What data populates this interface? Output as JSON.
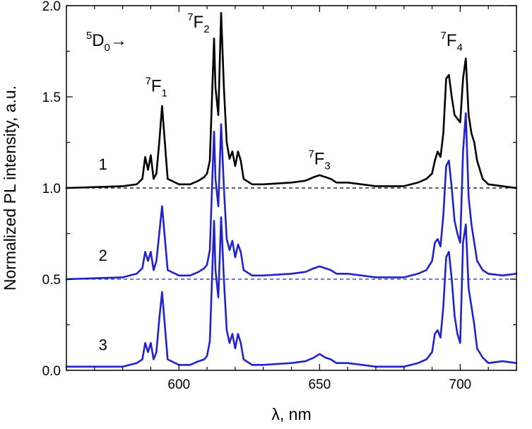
{
  "chart_data": {
    "type": "line",
    "title": "",
    "xlabel": "λ, nm",
    "ylabel": "Normalized PL intensity, a.u.",
    "xlim": [
      560,
      720
    ],
    "ylim": [
      0,
      2.0
    ],
    "x_ticks": [
      600,
      650,
      700
    ],
    "y_ticks": [
      0.0,
      0.5,
      1.0,
      1.5,
      2.0
    ],
    "x_tick_labels": [
      "600",
      "650",
      "700"
    ],
    "y_tick_labels": [
      "0.0",
      "0.5",
      "1.0",
      "1.5",
      "2.0"
    ],
    "grid": false,
    "baselines": [
      {
        "y": 1.0,
        "color": "#000000",
        "style": "dashed"
      },
      {
        "y": 0.5,
        "color": "#2222cc",
        "style": "dashed"
      }
    ],
    "series": [
      {
        "label": "1",
        "color": "#000000",
        "baseline": 1.0,
        "x": [
          560,
          580,
          585,
          587,
          588,
          589,
          590,
          591,
          592,
          593,
          594,
          596,
          600,
          604,
          607,
          609,
          610,
          611,
          612,
          612.5,
          613,
          614,
          615,
          616,
          617,
          618,
          619,
          620,
          621,
          622,
          623,
          626,
          630,
          640,
          645,
          648,
          650,
          652,
          654,
          656,
          660,
          670,
          680,
          685,
          688,
          690,
          691,
          692,
          693,
          694,
          695,
          696,
          697,
          698,
          699,
          700,
          701,
          702,
          703,
          704,
          705,
          706,
          708,
          710,
          715,
          720
        ],
        "y": [
          1.0,
          1.01,
          1.02,
          1.05,
          1.17,
          1.1,
          1.18,
          1.05,
          1.08,
          1.25,
          1.45,
          1.05,
          1.02,
          1.02,
          1.04,
          1.06,
          1.08,
          1.15,
          1.6,
          1.82,
          1.55,
          1.4,
          1.96,
          1.55,
          1.25,
          1.16,
          1.2,
          1.12,
          1.2,
          1.15,
          1.05,
          1.02,
          1.02,
          1.03,
          1.04,
          1.06,
          1.07,
          1.06,
          1.05,
          1.03,
          1.03,
          1.01,
          1.01,
          1.03,
          1.05,
          1.08,
          1.15,
          1.2,
          1.17,
          1.3,
          1.6,
          1.62,
          1.5,
          1.4,
          1.38,
          1.36,
          1.6,
          1.71,
          1.4,
          1.3,
          1.25,
          1.15,
          1.05,
          1.02,
          1.01,
          1.0
        ]
      },
      {
        "label": "2",
        "color": "#2222cc",
        "baseline": 0.5,
        "x": [
          560,
          580,
          585,
          587,
          588,
          589,
          590,
          591,
          592,
          593,
          594,
          596,
          600,
          604,
          607,
          609,
          610,
          611,
          612,
          612.5,
          613,
          614,
          615,
          616,
          617,
          618,
          619,
          620,
          621,
          622,
          623,
          626,
          630,
          640,
          645,
          648,
          650,
          652,
          654,
          656,
          660,
          670,
          680,
          685,
          688,
          690,
          691,
          692,
          693,
          694,
          695,
          696,
          697,
          698,
          699,
          700,
          701,
          702,
          703,
          704,
          705,
          706,
          708,
          710,
          715,
          720
        ],
        "y": [
          0.5,
          0.51,
          0.53,
          0.56,
          0.65,
          0.6,
          0.65,
          0.55,
          0.6,
          0.75,
          0.9,
          0.55,
          0.52,
          0.52,
          0.54,
          0.56,
          0.58,
          0.66,
          1.1,
          1.31,
          1.05,
          0.9,
          1.35,
          1.0,
          0.72,
          0.66,
          0.71,
          0.62,
          0.69,
          0.65,
          0.55,
          0.52,
          0.52,
          0.53,
          0.54,
          0.56,
          0.57,
          0.56,
          0.55,
          0.53,
          0.53,
          0.51,
          0.51,
          0.53,
          0.55,
          0.6,
          0.7,
          0.72,
          0.68,
          0.85,
          1.12,
          1.15,
          1.0,
          0.82,
          0.75,
          0.7,
          1.2,
          1.41,
          0.95,
          0.8,
          0.7,
          0.6,
          0.55,
          0.53,
          0.52,
          0.53
        ]
      },
      {
        "label": "3",
        "color": "#2222cc",
        "baseline": 0.0,
        "x": [
          560,
          580,
          585,
          587,
          588,
          589,
          590,
          591,
          592,
          593,
          594,
          596,
          600,
          604,
          607,
          609,
          610,
          611,
          612,
          612.5,
          613,
          614,
          615,
          616,
          617,
          618,
          619,
          620,
          621,
          622,
          623,
          626,
          630,
          640,
          645,
          648,
          650,
          652,
          654,
          656,
          660,
          670,
          680,
          685,
          688,
          690,
          691,
          692,
          693,
          694,
          695,
          696,
          697,
          698,
          699,
          700,
          701,
          702,
          703,
          704,
          705,
          706,
          708,
          710,
          715,
          720
        ],
        "y": [
          0.02,
          0.02,
          0.04,
          0.06,
          0.15,
          0.1,
          0.15,
          0.06,
          0.1,
          0.28,
          0.43,
          0.06,
          0.03,
          0.03,
          0.05,
          0.06,
          0.08,
          0.16,
          0.6,
          0.82,
          0.55,
          0.4,
          0.84,
          0.5,
          0.22,
          0.15,
          0.2,
          0.12,
          0.2,
          0.15,
          0.06,
          0.03,
          0.03,
          0.04,
          0.05,
          0.07,
          0.09,
          0.07,
          0.06,
          0.04,
          0.04,
          0.02,
          0.02,
          0.04,
          0.06,
          0.1,
          0.2,
          0.22,
          0.18,
          0.35,
          0.62,
          0.65,
          0.5,
          0.3,
          0.2,
          0.15,
          0.7,
          0.8,
          0.45,
          0.35,
          0.25,
          0.12,
          0.07,
          0.04,
          0.05,
          0.04
        ]
      }
    ],
    "annotations": [
      {
        "id": "d0",
        "base": "D",
        "sup": "5",
        "sub": "0",
        "suffix": "→",
        "x": 567,
        "y": 1.78
      },
      {
        "id": "f1",
        "base": "F",
        "sup": "7",
        "sub": "1",
        "suffix": "",
        "x": 588,
        "y": 1.53
      },
      {
        "id": "f2",
        "base": "F",
        "sup": "7",
        "sub": "2",
        "suffix": "",
        "x": 603,
        "y": 1.88
      },
      {
        "id": "f3",
        "base": "F",
        "sup": "7",
        "sub": "3",
        "suffix": "",
        "x": 646,
        "y": 1.13
      },
      {
        "id": "f4",
        "base": "F",
        "sup": "7",
        "sub": "4",
        "suffix": "",
        "x": 693,
        "y": 1.78
      }
    ],
    "curve_labels": [
      {
        "text": "1",
        "x": 573,
        "y": 1.1
      },
      {
        "text": "2",
        "x": 573,
        "y": 0.6
      },
      {
        "text": "3",
        "x": 573,
        "y": 0.11
      }
    ]
  }
}
